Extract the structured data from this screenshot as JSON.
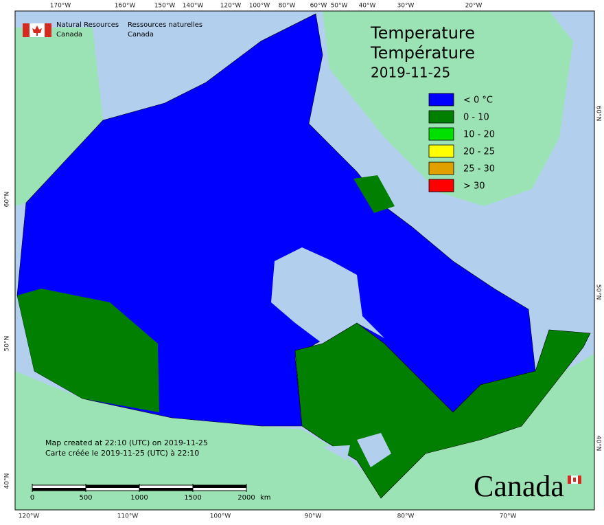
{
  "agency": {
    "en": [
      "Natural Resources",
      "Canada"
    ],
    "fr": [
      "Ressources naturelles",
      "Canada"
    ]
  },
  "title": [
    "Temperature",
    "Température",
    "2019-11-25"
  ],
  "legend": [
    {
      "label": "< 0 °C",
      "color": "#0000ff"
    },
    {
      "label": "0 - 10",
      "color": "#007f00"
    },
    {
      "label": "10 - 20",
      "color": "#00e000"
    },
    {
      "label": "20 - 25",
      "color": "#ffff00"
    },
    {
      "label": "25 - 30",
      "color": "#e0a000"
    },
    {
      "label": "> 30",
      "color": "#ff0000"
    }
  ],
  "graticule": {
    "top": [
      "170°W",
      "160°W",
      "150°W",
      "140°W",
      "120°W",
      "100°W",
      "80°W",
      "60°W",
      "50°W",
      "40°W",
      "30°W",
      "20°W"
    ],
    "bottom": [
      "120°W",
      "110°W",
      "100°W",
      "90°W",
      "80°W",
      "70°W"
    ],
    "left": [
      "60°N",
      "50°N",
      "40°N"
    ],
    "right": [
      "60°N",
      "50°N",
      "40°N"
    ]
  },
  "notes": [
    "Map created at 22:10 (UTC) on 2019-11-25",
    "Carte créée le 2019-11-25 (UTC) à 22:10"
  ],
  "scale": {
    "ticks": [
      0,
      500,
      1000,
      1500,
      2000
    ],
    "unit": "km"
  },
  "wordmark": "Canada"
}
